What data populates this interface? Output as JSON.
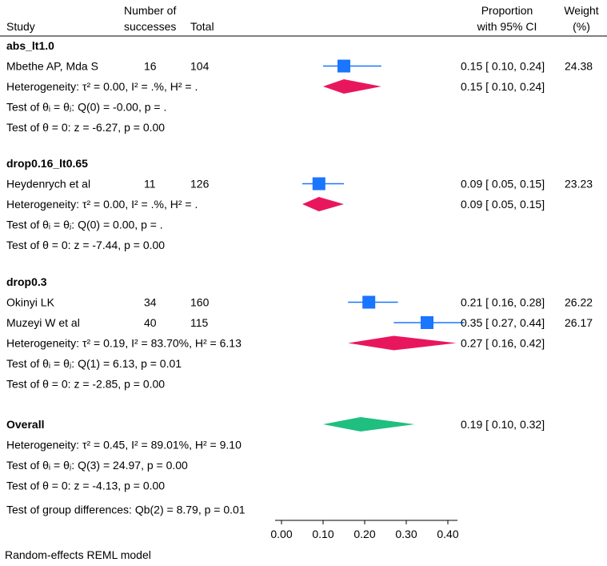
{
  "headers": {
    "study": "Study",
    "successes_line1": "Number of",
    "successes_line2": "successes",
    "total": "Total",
    "prop_line1": "Proportion",
    "prop_line2": "with 95% CI",
    "weight_line1": "Weight",
    "weight_line2": "(%)"
  },
  "colors": {
    "study_marker": "#1a75ff",
    "study_ci": "#1a75ff",
    "group_diamond": "#e8175d",
    "overall_diamond": "#1fbf7f",
    "axis": "#000000"
  },
  "chart_data": {
    "type": "forest",
    "axis": {
      "ticks": [
        0.0,
        0.1,
        0.2,
        0.3,
        0.4
      ],
      "tick_labels": [
        "0.00",
        "0.10",
        "0.20",
        "0.30",
        "0.40"
      ],
      "xlim": [
        0.0,
        0.45
      ]
    },
    "groups": [
      {
        "name": "abs_lt1.0",
        "studies": [
          {
            "study": "Mbethe AP, Mda S",
            "successes": "16",
            "total": "104",
            "est": 0.15,
            "lo": 0.1,
            "hi": 0.24,
            "ci_text": "0.15 [ 0.10,  0.24]",
            "weight": "24.38"
          }
        ],
        "pooled": {
          "est": 0.15,
          "lo": 0.1,
          "hi": 0.24,
          "ci_text": "0.15 [ 0.10,  0.24]"
        },
        "heterogeneity": "Heterogeneity: τ² = 0.00, I² = .%, H² = .",
        "test_equal": "Test of θᵢ = θⱼ: Q(0) = -0.00, p = .",
        "test_zero": "Test of θ = 0: z = -6.27, p = 0.00"
      },
      {
        "name": "drop0.16_lt0.65",
        "studies": [
          {
            "study": "Heydenrych et al",
            "successes": "11",
            "total": "126",
            "est": 0.09,
            "lo": 0.05,
            "hi": 0.15,
            "ci_text": "0.09 [ 0.05,  0.15]",
            "weight": "23.23"
          }
        ],
        "pooled": {
          "est": 0.09,
          "lo": 0.05,
          "hi": 0.15,
          "ci_text": "0.09 [ 0.05,  0.15]"
        },
        "heterogeneity": "Heterogeneity: τ² = 0.00, I² = .%, H² = .",
        "test_equal": "Test of θᵢ = θⱼ: Q(0) = 0.00, p = .",
        "test_zero": "Test of θ = 0: z = -7.44, p = 0.00"
      },
      {
        "name": "drop0.3",
        "studies": [
          {
            "study": "Okinyi LK",
            "successes": "34",
            "total": "160",
            "est": 0.21,
            "lo": 0.16,
            "hi": 0.28,
            "ci_text": "0.21 [ 0.16,  0.28]",
            "weight": "26.22"
          },
          {
            "study": "Muzeyi W et al",
            "successes": "40",
            "total": "115",
            "est": 0.35,
            "lo": 0.27,
            "hi": 0.44,
            "ci_text": "0.35 [ 0.27,  0.44]",
            "weight": "26.17"
          }
        ],
        "pooled": {
          "est": 0.27,
          "lo": 0.16,
          "hi": 0.42,
          "ci_text": "0.27 [ 0.16,  0.42]"
        },
        "heterogeneity": "Heterogeneity: τ² = 0.19, I² = 83.70%, H² = 6.13",
        "test_equal": "Test of θᵢ = θⱼ: Q(1) = 6.13, p = 0.01",
        "test_zero": "Test of θ = 0: z = -2.85, p = 0.00"
      }
    ],
    "overall": {
      "label": "Overall",
      "est": 0.19,
      "lo": 0.1,
      "hi": 0.32,
      "ci_text": "0.19 [ 0.10,  0.32]",
      "heterogeneity": "Heterogeneity: τ² = 0.45, I² = 89.01%, H² = 9.10",
      "test_equal": "Test of θᵢ = θⱼ: Q(3) = 24.97, p = 0.00",
      "test_zero": "Test of θ = 0: z = -4.13, p = 0.00",
      "group_diff": "Test of group differences: Qb(2) = 8.79, p = 0.01"
    }
  },
  "footer": "Random-effects REML model"
}
